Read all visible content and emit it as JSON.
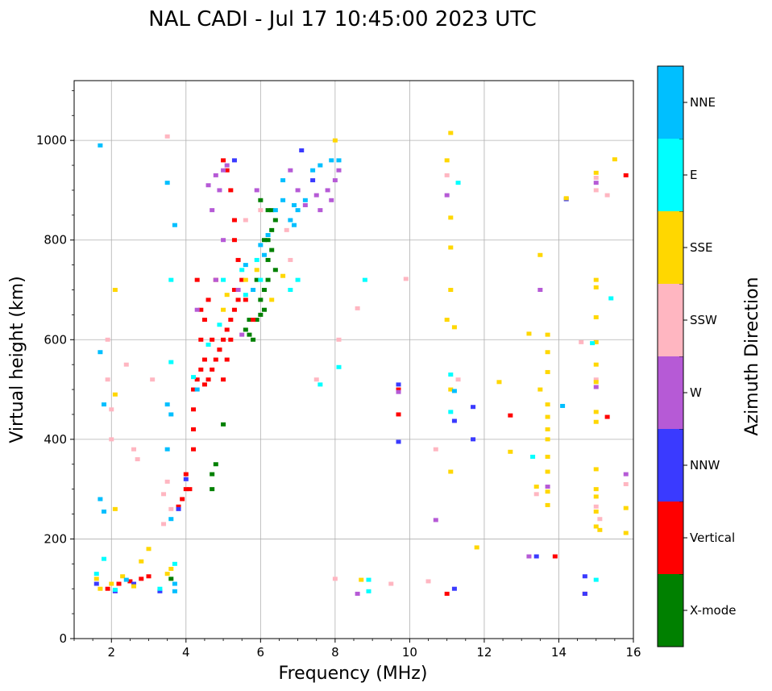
{
  "chart_data": {
    "type": "scatter",
    "title": "NAL CADI - Jul 17 10:45:00 2023 UTC",
    "xlabel": "Frequency (MHz)",
    "ylabel": "Virtual height (km)",
    "xlim": [
      1.0,
      16.0
    ],
    "ylim": [
      0,
      1120
    ],
    "xticks": [
      2,
      4,
      6,
      8,
      10,
      12,
      14,
      16
    ],
    "yticks": [
      0,
      200,
      400,
      600,
      800,
      1000
    ],
    "grid": true,
    "colorbar": {
      "label": "Azimuth Direction",
      "position": "right",
      "categories": [
        {
          "name": "X-mode",
          "color": "#008000"
        },
        {
          "name": "Vertical",
          "color": "#ff0000"
        },
        {
          "name": "NNW",
          "color": "#3a3aff"
        },
        {
          "name": "W",
          "color": "#b65ad6"
        },
        {
          "name": "SSW",
          "color": "#ffb6c1"
        },
        {
          "name": "SSE",
          "color": "#ffd700"
        },
        {
          "name": "E",
          "color": "#00ffff"
        },
        {
          "name": "NNE",
          "color": "#00bfff"
        }
      ]
    },
    "series": [
      {
        "name": "X-mode",
        "points": [
          [
            5.6,
            620
          ],
          [
            5.7,
            610
          ],
          [
            5.8,
            600
          ],
          [
            5.9,
            640
          ],
          [
            6.0,
            650
          ],
          [
            6.1,
            660
          ],
          [
            6.1,
            700
          ],
          [
            6.2,
            720
          ],
          [
            6.2,
            760
          ],
          [
            6.3,
            780
          ],
          [
            6.2,
            800
          ],
          [
            6.3,
            820
          ],
          [
            6.4,
            840
          ],
          [
            6.2,
            860
          ],
          [
            6.0,
            880
          ],
          [
            5.9,
            720
          ],
          [
            5.7,
            640
          ],
          [
            6.0,
            680
          ],
          [
            6.4,
            740
          ],
          [
            4.8,
            350
          ],
          [
            4.7,
            330
          ],
          [
            4.7,
            300
          ],
          [
            3.6,
            120
          ],
          [
            5.0,
            430
          ],
          [
            6.3,
            860
          ],
          [
            6.1,
            800
          ]
        ]
      },
      {
        "name": "Vertical",
        "points": [
          [
            4.2,
            380
          ],
          [
            4.2,
            420
          ],
          [
            4.2,
            460
          ],
          [
            4.2,
            500
          ],
          [
            4.3,
            520
          ],
          [
            4.4,
            540
          ],
          [
            4.5,
            560
          ],
          [
            4.6,
            520
          ],
          [
            4.7,
            540
          ],
          [
            4.8,
            560
          ],
          [
            4.9,
            580
          ],
          [
            5.0,
            600
          ],
          [
            5.1,
            620
          ],
          [
            5.2,
            640
          ],
          [
            5.3,
            660
          ],
          [
            5.4,
            680
          ],
          [
            5.5,
            720
          ],
          [
            5.4,
            760
          ],
          [
            5.3,
            800
          ],
          [
            5.3,
            840
          ],
          [
            5.2,
            900
          ],
          [
            5.1,
            940
          ],
          [
            5.0,
            960
          ],
          [
            4.4,
            600
          ],
          [
            4.5,
            640
          ],
          [
            4.6,
            680
          ],
          [
            4.8,
            720
          ],
          [
            4.3,
            720
          ],
          [
            4.4,
            660
          ],
          [
            4.7,
            600
          ],
          [
            5.1,
            560
          ],
          [
            5.0,
            520
          ],
          [
            4.9,
            580
          ],
          [
            3.9,
            280
          ],
          [
            4.0,
            300
          ],
          [
            4.0,
            330
          ],
          [
            3.8,
            265
          ],
          [
            2.2,
            110
          ],
          [
            2.5,
            115
          ],
          [
            2.8,
            120
          ],
          [
            3.0,
            125
          ],
          [
            1.9,
            100
          ],
          [
            4.5,
            510
          ],
          [
            5.6,
            680
          ],
          [
            5.8,
            640
          ],
          [
            9.7,
            450
          ],
          [
            9.7,
            500
          ],
          [
            12.7,
            448
          ],
          [
            13.9,
            165
          ],
          [
            15.3,
            445
          ],
          [
            15.8,
            930
          ],
          [
            14.7,
            90
          ],
          [
            11.0,
            90
          ],
          [
            4.1,
            300
          ],
          [
            5.3,
            700
          ],
          [
            5.2,
            600
          ]
        ]
      },
      {
        "name": "NNW",
        "points": [
          [
            3.8,
            260
          ],
          [
            4.0,
            320
          ],
          [
            7.1,
            980
          ],
          [
            7.4,
            920
          ],
          [
            9.7,
            395
          ],
          [
            9.7,
            510
          ],
          [
            11.7,
            465
          ],
          [
            11.7,
            400
          ],
          [
            11.2,
            437
          ],
          [
            11.2,
            100
          ],
          [
            13.4,
            165
          ],
          [
            14.7,
            125
          ],
          [
            14.7,
            90
          ],
          [
            14.2,
            882
          ],
          [
            5.3,
            960
          ],
          [
            1.6,
            110
          ],
          [
            3.3,
            95
          ],
          [
            2.1,
            95
          ],
          [
            2.6,
            110
          ]
        ]
      },
      {
        "name": "W",
        "points": [
          [
            4.6,
            910
          ],
          [
            4.8,
            930
          ],
          [
            5.0,
            940
          ],
          [
            5.1,
            950
          ],
          [
            4.7,
            860
          ],
          [
            4.9,
            900
          ],
          [
            7.5,
            890
          ],
          [
            7.8,
            900
          ],
          [
            7.9,
            880
          ],
          [
            8.0,
            920
          ],
          [
            7.6,
            860
          ],
          [
            7.2,
            870
          ],
          [
            6.8,
            940
          ],
          [
            7.0,
            900
          ],
          [
            8.1,
            940
          ],
          [
            5.5,
            610
          ],
          [
            5.4,
            700
          ],
          [
            5.0,
            800
          ],
          [
            4.8,
            720
          ],
          [
            9.7,
            495
          ],
          [
            10.7,
            238
          ],
          [
            11.0,
            890
          ],
          [
            13.5,
            700
          ],
          [
            13.7,
            305
          ],
          [
            15.0,
            505
          ],
          [
            15.0,
            915
          ],
          [
            15.8,
            330
          ],
          [
            13.2,
            165
          ],
          [
            8.6,
            90
          ],
          [
            4.3,
            660
          ],
          [
            5.9,
            900
          ]
        ]
      },
      {
        "name": "SSW",
        "points": [
          [
            1.9,
            600
          ],
          [
            1.9,
            520
          ],
          [
            2.4,
            550
          ],
          [
            3.1,
            520
          ],
          [
            2.6,
            380
          ],
          [
            2.7,
            360
          ],
          [
            3.4,
            290
          ],
          [
            3.5,
            315
          ],
          [
            3.6,
            260
          ],
          [
            3.4,
            230
          ],
          [
            5.6,
            840
          ],
          [
            6.0,
            860
          ],
          [
            6.7,
            820
          ],
          [
            6.8,
            760
          ],
          [
            7.5,
            520
          ],
          [
            8.1,
            600
          ],
          [
            8.6,
            663
          ],
          [
            9.9,
            722
          ],
          [
            10.7,
            380
          ],
          [
            11.0,
            930
          ],
          [
            11.3,
            520
          ],
          [
            13.4,
            290
          ],
          [
            14.6,
            595
          ],
          [
            15.0,
            520
          ],
          [
            15.3,
            890
          ],
          [
            15.8,
            310
          ],
          [
            15.0,
            925
          ],
          [
            15.0,
            265
          ],
          [
            15.1,
            240
          ],
          [
            10.5,
            115
          ],
          [
            9.5,
            110
          ],
          [
            8.0,
            120
          ],
          [
            15.0,
            900
          ],
          [
            2.0,
            400
          ],
          [
            2.0,
            460
          ],
          [
            3.5,
            1008
          ]
        ]
      },
      {
        "name": "SSE",
        "points": [
          [
            1.6,
            120
          ],
          [
            1.7,
            100
          ],
          [
            2.0,
            110
          ],
          [
            2.3,
            125
          ],
          [
            2.6,
            105
          ],
          [
            2.8,
            155
          ],
          [
            3.0,
            180
          ],
          [
            3.5,
            130
          ],
          [
            3.6,
            140
          ],
          [
            2.1,
            700
          ],
          [
            2.1,
            490
          ],
          [
            2.1,
            260
          ],
          [
            5.0,
            660
          ],
          [
            5.1,
            690
          ],
          [
            5.6,
            720
          ],
          [
            5.9,
            740
          ],
          [
            6.3,
            680
          ],
          [
            6.6,
            728
          ],
          [
            8.0,
            1000
          ],
          [
            11.0,
            960
          ],
          [
            11.1,
            1015
          ],
          [
            11.0,
            640
          ],
          [
            11.1,
            700
          ],
          [
            11.2,
            625
          ],
          [
            11.1,
            500
          ],
          [
            11.1,
            845
          ],
          [
            11.1,
            785
          ],
          [
            11.1,
            335
          ],
          [
            13.2,
            612
          ],
          [
            13.5,
            770
          ],
          [
            13.5,
            500
          ],
          [
            13.7,
            610
          ],
          [
            13.7,
            575
          ],
          [
            13.7,
            535
          ],
          [
            13.7,
            470
          ],
          [
            13.7,
            445
          ],
          [
            13.7,
            420
          ],
          [
            13.7,
            400
          ],
          [
            13.7,
            365
          ],
          [
            13.7,
            335
          ],
          [
            13.7,
            295
          ],
          [
            13.7,
            268
          ],
          [
            13.4,
            305
          ],
          [
            15.0,
            935
          ],
          [
            15.0,
            720
          ],
          [
            15.0,
            705
          ],
          [
            15.0,
            645
          ],
          [
            15.0,
            595
          ],
          [
            15.0,
            550
          ],
          [
            15.0,
            515
          ],
          [
            15.0,
            455
          ],
          [
            15.0,
            435
          ],
          [
            15.0,
            340
          ],
          [
            15.0,
            300
          ],
          [
            15.0,
            285
          ],
          [
            15.0,
            255
          ],
          [
            15.0,
            225
          ],
          [
            15.1,
            218
          ],
          [
            15.5,
            962
          ],
          [
            15.8,
            262
          ],
          [
            15.8,
            212
          ],
          [
            12.7,
            375
          ],
          [
            12.4,
            515
          ],
          [
            11.8,
            183
          ],
          [
            8.7,
            118
          ],
          [
            14.2,
            884
          ]
        ]
      },
      {
        "name": "E",
        "points": [
          [
            1.6,
            130
          ],
          [
            1.8,
            160
          ],
          [
            2.1,
            98
          ],
          [
            3.3,
            100
          ],
          [
            3.7,
            150
          ],
          [
            3.6,
            555
          ],
          [
            4.2,
            525
          ],
          [
            4.6,
            590
          ],
          [
            4.9,
            630
          ],
          [
            5.0,
            720
          ],
          [
            5.5,
            740
          ],
          [
            5.9,
            760
          ],
          [
            6.8,
            700
          ],
          [
            7.0,
            720
          ],
          [
            7.6,
            510
          ],
          [
            8.1,
            545
          ],
          [
            8.8,
            720
          ],
          [
            11.3,
            915
          ],
          [
            11.1,
            530
          ],
          [
            13.3,
            365
          ],
          [
            14.9,
            593
          ],
          [
            15.4,
            683
          ],
          [
            15.0,
            118
          ],
          [
            8.9,
            118
          ],
          [
            8.9,
            95
          ],
          [
            11.1,
            455
          ],
          [
            5.6,
            690
          ],
          [
            6.0,
            720
          ],
          [
            3.6,
            720
          ]
        ]
      },
      {
        "name": "NNE",
        "points": [
          [
            1.7,
            990
          ],
          [
            1.8,
            255
          ],
          [
            1.7,
            575
          ],
          [
            1.8,
            470
          ],
          [
            3.5,
            470
          ],
          [
            3.6,
            450
          ],
          [
            3.7,
            830
          ],
          [
            3.5,
            915
          ],
          [
            3.5,
            380
          ],
          [
            3.6,
            240
          ],
          [
            3.7,
            110
          ],
          [
            1.7,
            280
          ],
          [
            6.4,
            860
          ],
          [
            6.6,
            880
          ],
          [
            6.8,
            840
          ],
          [
            6.9,
            870
          ],
          [
            7.0,
            860
          ],
          [
            7.2,
            880
          ],
          [
            7.4,
            940
          ],
          [
            7.6,
            950
          ],
          [
            7.9,
            960
          ],
          [
            8.1,
            960
          ],
          [
            6.6,
            920
          ],
          [
            6.0,
            790
          ],
          [
            6.1,
            770
          ],
          [
            6.2,
            810
          ],
          [
            5.6,
            750
          ],
          [
            5.8,
            700
          ],
          [
            14.1,
            467
          ],
          [
            11.2,
            497
          ],
          [
            4.3,
            500
          ],
          [
            3.7,
            95
          ],
          [
            2.4,
            118
          ],
          [
            6.9,
            830
          ]
        ]
      }
    ]
  }
}
